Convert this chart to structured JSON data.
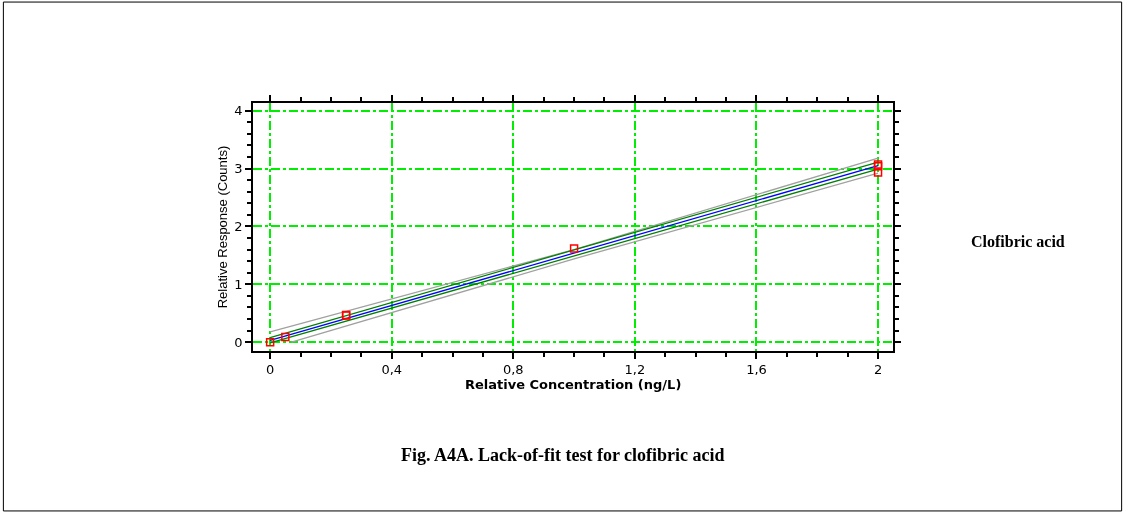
{
  "chart_data": {
    "type": "line",
    "xlabel": "Relative Concentration (ng/L)",
    "ylabel": "Relative Response (Counts)",
    "annotations": [
      "Clofibric acid",
      "Fig. A4A. Lack-of-fit test for clofibric acid"
    ],
    "series": [
      {
        "color": "#a0a0a0",
        "x": [
          0,
          1,
          2
        ],
        "values": [
          0.18,
          1.6,
          3.18
        ],
        "marker": "none",
        "line_style": "solid"
      },
      {
        "color": "#a0a0a0",
        "x": [
          0.07,
          1,
          2
        ],
        "values": [
          0,
          1.44,
          2.92
        ],
        "marker": "none",
        "line_style": "solid"
      },
      {
        "color": "#008000",
        "x": [
          0,
          2
        ],
        "values": [
          0.08,
          3.11
        ],
        "marker": "none",
        "line_style": "solid"
      },
      {
        "color": "#008000",
        "x": [
          0,
          2
        ],
        "values": [
          -0.01,
          2.99
        ],
        "marker": "none",
        "line_style": "solid"
      },
      {
        "color": "#0000ff",
        "x": [
          0,
          2
        ],
        "values": [
          0.03,
          3.05
        ],
        "marker": "none",
        "line_style": "solid"
      },
      {
        "type": "scatter",
        "color": "#ff0000",
        "x": [
          0,
          0.05,
          0.25,
          0.25,
          1,
          2,
          2,
          2
        ],
        "values": [
          0,
          0.09,
          0.46,
          0.47,
          1.62,
          3.07,
          3.04,
          2.93
        ],
        "marker": "square"
      }
    ],
    "xlim": [
      -0.056,
      2.05
    ],
    "xticks": [
      0,
      {
        "value": 0.4,
        "label": "0,4"
      },
      {
        "value": 0.8,
        "label": "0,8"
      },
      {
        "value": 1.2,
        "label": "1,2"
      },
      {
        "value": 1.6,
        "label": "1,6"
      },
      2
    ],
    "ylim": [
      -0.15,
      4.13
    ],
    "yticks": [
      0,
      1,
      2,
      3,
      4
    ],
    "grid": true
  }
}
